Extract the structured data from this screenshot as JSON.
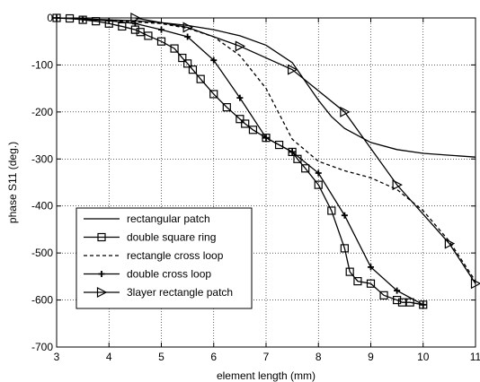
{
  "chart_data": {
    "type": "line",
    "title": "",
    "xlabel": "element length (mm)",
    "ylabel": "phase S11 (deg.)",
    "xlim": [
      3,
      11
    ],
    "ylim": [
      -700,
      0
    ],
    "xticks": [
      3,
      4,
      5,
      6,
      7,
      8,
      9,
      10,
      11
    ],
    "yticks": [
      0,
      -100,
      -200,
      -300,
      -400,
      -500,
      -600,
      -700
    ],
    "grid": true,
    "legend_position": "lower-left",
    "series": [
      {
        "name": "rectangular patch",
        "line": "solid",
        "marker": "none",
        "x": [
          3,
          3.5,
          4,
          4.5,
          5,
          5.5,
          6,
          6.5,
          7,
          7.5,
          8,
          8.25,
          8.5,
          9,
          9.5,
          10,
          10.5,
          11
        ],
        "y": [
          0,
          -2,
          -4,
          -6,
          -10,
          -16,
          -25,
          -38,
          -58,
          -95,
          -175,
          -210,
          -235,
          -265,
          -280,
          -288,
          -292,
          -296
        ]
      },
      {
        "name": "double square ring",
        "line": "solid",
        "marker": "square",
        "x": [
          3,
          3.25,
          3.5,
          3.75,
          4,
          4.25,
          4.5,
          4.6,
          4.75,
          5,
          5.25,
          5.4,
          5.5,
          5.6,
          5.75,
          6,
          6.25,
          6.5,
          6.6,
          6.75,
          7,
          7.25,
          7.5,
          7.6,
          7.75,
          8,
          8.25,
          8.5,
          8.6,
          8.75,
          9,
          9.25,
          9.5,
          9.6,
          9.75,
          10
        ],
        "y": [
          0,
          -1,
          -4,
          -7,
          -12,
          -18,
          -25,
          -30,
          -38,
          -50,
          -65,
          -85,
          -97,
          -110,
          -130,
          -162,
          -190,
          -215,
          -225,
          -238,
          -255,
          -270,
          -285,
          -300,
          -320,
          -355,
          -410,
          -490,
          -540,
          -560,
          -565,
          -590,
          -600,
          -605,
          -605,
          -610
        ]
      },
      {
        "name": "rectangle cross loop",
        "line": "dashed",
        "marker": "none",
        "x": [
          3,
          4,
          5,
          5.5,
          6,
          6.5,
          7,
          7.5,
          8,
          8.5,
          9,
          9.5,
          10,
          10.5,
          11
        ],
        "y": [
          0,
          -5,
          -12,
          -22,
          -40,
          -80,
          -150,
          -258,
          -305,
          -325,
          -340,
          -365,
          -410,
          -475,
          -560
        ]
      },
      {
        "name": "double cross loop",
        "line": "solid",
        "marker": "plus",
        "x": [
          3,
          3.5,
          4,
          4.5,
          5,
          5.5,
          6,
          6.5,
          7,
          7.5,
          8,
          8.5,
          9,
          9.5,
          10
        ],
        "y": [
          0,
          -3,
          -6,
          -12,
          -25,
          -40,
          -90,
          -170,
          -255,
          -285,
          -330,
          -420,
          -530,
          -580,
          -610
        ]
      },
      {
        "name": "3layer rectangle patch",
        "line": "solid",
        "marker": "triangle-right",
        "x": [
          4.5,
          5.5,
          6.5,
          7.5,
          8.5,
          9.5,
          10.5,
          11
        ],
        "y": [
          0,
          -20,
          -60,
          -110,
          -200,
          -355,
          -480,
          -565
        ]
      }
    ]
  }
}
